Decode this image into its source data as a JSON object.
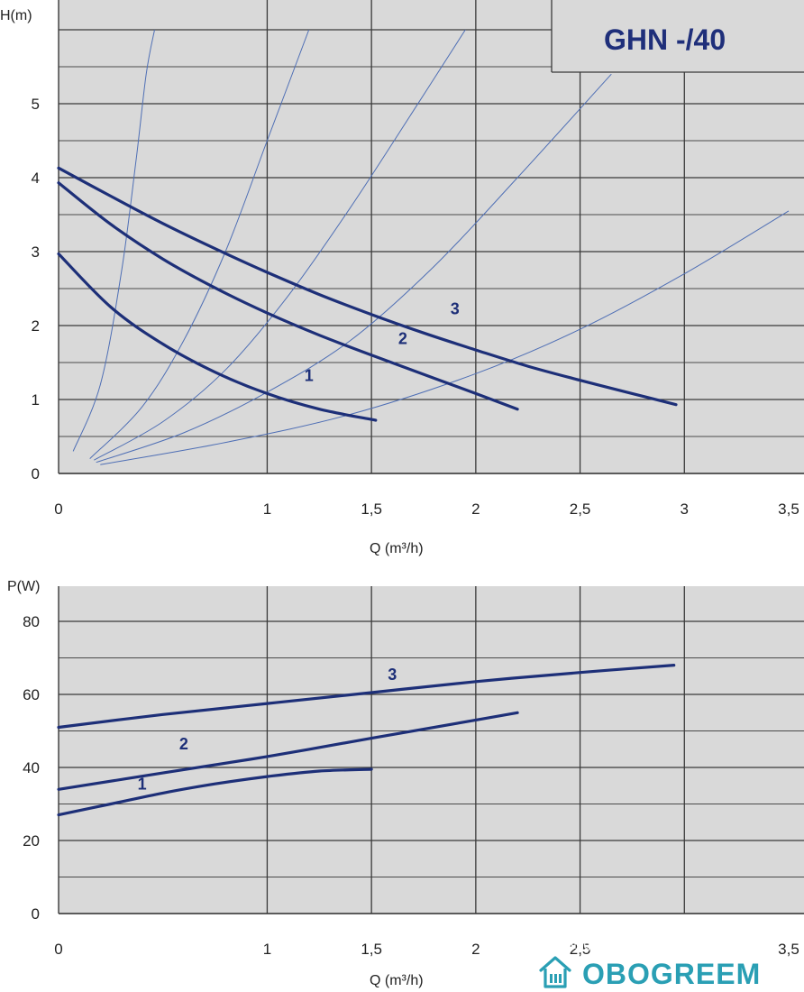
{
  "chart_data": [
    {
      "type": "line",
      "title": "GHN -/40",
      "xlabel": "Q (m³/h)",
      "ylabel": "H(m)",
      "xlim": [
        0,
        3.5
      ],
      "ylim": [
        0,
        6
      ],
      "xticks": [
        {
          "v": 0,
          "t": "0"
        },
        {
          "v": 1,
          "t": "1"
        },
        {
          "v": 1.5,
          "t": "1,5"
        },
        {
          "v": 2,
          "t": "2"
        },
        {
          "v": 2.5,
          "t": "2,5"
        },
        {
          "v": 3,
          "t": "3"
        },
        {
          "v": 3.5,
          "t": "3,5"
        }
      ],
      "yticks": [
        {
          "v": 0,
          "t": "0"
        },
        {
          "v": 1,
          "t": "1"
        },
        {
          "v": 2,
          "t": "2"
        },
        {
          "v": 3,
          "t": "3"
        },
        {
          "v": 4,
          "t": "4"
        },
        {
          "v": 5,
          "t": "5"
        }
      ],
      "grid": true,
      "series": [
        {
          "name": "1",
          "points": [
            [
              0,
              2.97
            ],
            [
              0.25,
              2.25
            ],
            [
              0.5,
              1.75
            ],
            [
              0.75,
              1.37
            ],
            [
              1.0,
              1.08
            ],
            [
              1.25,
              0.87
            ],
            [
              1.52,
              0.72
            ]
          ],
          "label_at": [
            1.2,
            1.25
          ]
        },
        {
          "name": "2",
          "points": [
            [
              0,
              3.93
            ],
            [
              0.25,
              3.37
            ],
            [
              0.5,
              2.9
            ],
            [
              0.75,
              2.51
            ],
            [
              1.0,
              2.17
            ],
            [
              1.25,
              1.87
            ],
            [
              1.5,
              1.6
            ],
            [
              1.75,
              1.34
            ],
            [
              2.0,
              1.08
            ],
            [
              2.2,
              0.87
            ]
          ],
          "label_at": [
            1.65,
            1.75
          ]
        },
        {
          "name": "3",
          "points": [
            [
              0,
              4.13
            ],
            [
              0.25,
              3.75
            ],
            [
              0.5,
              3.38
            ],
            [
              0.75,
              3.04
            ],
            [
              1.0,
              2.72
            ],
            [
              1.25,
              2.42
            ],
            [
              1.5,
              2.15
            ],
            [
              1.75,
              1.9
            ],
            [
              2.0,
              1.67
            ],
            [
              2.25,
              1.45
            ],
            [
              2.5,
              1.26
            ],
            [
              2.75,
              1.08
            ],
            [
              2.96,
              0.93
            ]
          ],
          "label_at": [
            1.9,
            2.15
          ]
        }
      ],
      "reference_curves": [
        {
          "points": [
            [
              0.07,
              0.3
            ],
            [
              0.2,
              1.2
            ],
            [
              0.3,
              2.7
            ],
            [
              0.37,
              4.2
            ],
            [
              0.42,
              5.4
            ],
            [
              0.46,
              6.0
            ]
          ]
        },
        {
          "points": [
            [
              0.15,
              0.2
            ],
            [
              0.4,
              0.9
            ],
            [
              0.6,
              1.8
            ],
            [
              0.8,
              3.0
            ],
            [
              1.0,
              4.5
            ],
            [
              1.2,
              6.0
            ]
          ]
        },
        {
          "points": [
            [
              0.17,
              0.18
            ],
            [
              0.5,
              0.7
            ],
            [
              0.8,
              1.4
            ],
            [
              1.1,
              2.4
            ],
            [
              1.4,
              3.6
            ],
            [
              1.7,
              4.9
            ],
            [
              1.95,
              6.0
            ]
          ]
        },
        {
          "points": [
            [
              0.18,
              0.15
            ],
            [
              0.6,
              0.55
            ],
            [
              1.0,
              1.1
            ],
            [
              1.4,
              1.8
            ],
            [
              1.8,
              2.8
            ],
            [
              2.2,
              4.0
            ],
            [
              2.65,
              5.4
            ]
          ]
        },
        {
          "points": [
            [
              0.2,
              0.12
            ],
            [
              0.8,
              0.42
            ],
            [
              1.4,
              0.8
            ],
            [
              2.0,
              1.35
            ],
            [
              2.5,
              1.95
            ],
            [
              3.0,
              2.7
            ],
            [
              3.5,
              3.55
            ]
          ]
        }
      ]
    },
    {
      "type": "line",
      "xlabel": "Q (m³/h)",
      "ylabel": "P(W)",
      "xlim": [
        0,
        3.5
      ],
      "ylim": [
        0,
        90
      ],
      "xticks": [
        {
          "v": 0,
          "t": "0"
        },
        {
          "v": 1,
          "t": "1"
        },
        {
          "v": 1.5,
          "t": "1,5"
        },
        {
          "v": 2,
          "t": "2"
        },
        {
          "v": 2.5,
          "t": "2,5"
        },
        {
          "v": 3.5,
          "t": "3,5"
        }
      ],
      "yticks": [
        {
          "v": 0,
          "t": "0"
        },
        {
          "v": 20,
          "t": "20"
        },
        {
          "v": 40,
          "t": "40"
        },
        {
          "v": 60,
          "t": "60"
        },
        {
          "v": 80,
          "t": "80"
        }
      ],
      "grid": true,
      "series": [
        {
          "name": "1",
          "points": [
            [
              0,
              27
            ],
            [
              0.25,
              30
            ],
            [
              0.5,
              33
            ],
            [
              0.75,
              35.5
            ],
            [
              1.0,
              37.5
            ],
            [
              1.25,
              39
            ],
            [
              1.5,
              39.5
            ]
          ],
          "label_at": [
            0.4,
            34
          ]
        },
        {
          "name": "2",
          "points": [
            [
              0,
              34
            ],
            [
              0.5,
              38.5
            ],
            [
              1.0,
              43
            ],
            [
              1.5,
              48
            ],
            [
              2.0,
              53
            ],
            [
              2.2,
              55
            ]
          ],
          "label_at": [
            0.6,
            45
          ]
        },
        {
          "name": "3",
          "points": [
            [
              0,
              51
            ],
            [
              0.5,
              54.5
            ],
            [
              1.0,
              57.5
            ],
            [
              1.5,
              60.5
            ],
            [
              2.0,
              63.5
            ],
            [
              2.5,
              66
            ],
            [
              2.95,
              68
            ]
          ],
          "label_at": [
            1.6,
            64
          ]
        }
      ]
    }
  ],
  "watermark": "catalog.onliner.by",
  "logo": {
    "text": "OBOGREEM",
    "color": "#2a9fb4"
  }
}
